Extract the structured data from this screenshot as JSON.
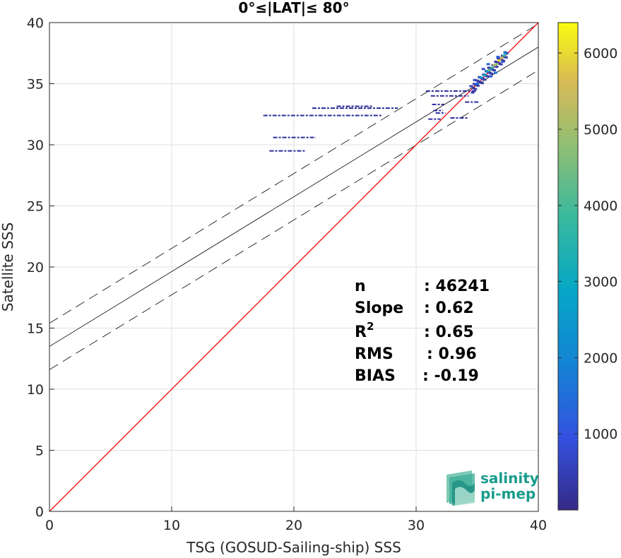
{
  "chart_data": {
    "type": "scatter",
    "title": "0°≤|LAT|≤ 80°",
    "xlabel": "TSG (GOSUD-Sailing-ship) SSS",
    "ylabel": "Satellite SSS",
    "xlim": [
      0,
      40
    ],
    "ylim": [
      0,
      40
    ],
    "xticks": [
      0,
      10,
      20,
      30,
      40
    ],
    "yticks": [
      0,
      5,
      10,
      15,
      20,
      25,
      30,
      35,
      40
    ],
    "grid": true,
    "colorbar": {
      "colormap": "parula",
      "range": [
        0,
        6400
      ],
      "ticks": [
        1000,
        2000,
        3000,
        4000,
        5000,
        6000
      ]
    },
    "lines": {
      "identity": {
        "slope": 1,
        "intercept": 0,
        "color": "#ff0000"
      },
      "fit": {
        "slope": 0.6125,
        "intercept": 13.5,
        "color": "#000000"
      },
      "upper_bound": {
        "slope": 0.6125,
        "intercept": 15.4,
        "style": "dashed"
      },
      "lower_bound": {
        "slope": 0.6125,
        "intercept": 11.6,
        "style": "dashed"
      }
    },
    "segments": [
      {
        "x0": 17.5,
        "x1": 27.2,
        "y": 32.4
      },
      {
        "x0": 21.5,
        "x1": 28.5,
        "y": 33.0
      },
      {
        "x0": 23.5,
        "x1": 26.5,
        "y": 33.15
      },
      {
        "x0": 18.3,
        "x1": 21.8,
        "y": 30.6
      },
      {
        "x0": 18.0,
        "x1": 21.0,
        "y": 29.5
      },
      {
        "x0": 30.8,
        "x1": 35.0,
        "y": 34.4
      },
      {
        "x0": 31.2,
        "x1": 34.3,
        "y": 34.0
      },
      {
        "x0": 31.0,
        "x1": 32.0,
        "y": 32.1
      },
      {
        "x0": 32.8,
        "x1": 34.2,
        "y": 32.2
      },
      {
        "x0": 31.3,
        "x1": 32.3,
        "y": 33.3
      },
      {
        "x0": 31.4,
        "x1": 32.2,
        "y": 32.8
      },
      {
        "x0": 31.6,
        "x1": 32.4,
        "y": 32.6
      },
      {
        "x0": 34.0,
        "x1": 35.2,
        "y": 33.5
      }
    ],
    "points": [
      {
        "x": 35.0,
        "y": 35.0,
        "c": 1500
      },
      {
        "x": 35.3,
        "y": 35.5,
        "c": 2200
      },
      {
        "x": 35.6,
        "y": 35.7,
        "c": 3000
      },
      {
        "x": 35.8,
        "y": 36.0,
        "c": 2500
      },
      {
        "x": 36.0,
        "y": 36.1,
        "c": 4200
      },
      {
        "x": 36.2,
        "y": 36.3,
        "c": 3500
      },
      {
        "x": 36.4,
        "y": 36.5,
        "c": 5200
      },
      {
        "x": 36.6,
        "y": 36.6,
        "c": 4800
      },
      {
        "x": 36.8,
        "y": 36.9,
        "c": 6000
      },
      {
        "x": 37.0,
        "y": 37.1,
        "c": 5500
      },
      {
        "x": 37.2,
        "y": 37.3,
        "c": 3800
      },
      {
        "x": 37.3,
        "y": 37.5,
        "c": 2000
      },
      {
        "x": 35.5,
        "y": 36.2,
        "c": 800
      },
      {
        "x": 36.1,
        "y": 35.6,
        "c": 1000
      },
      {
        "x": 36.7,
        "y": 37.2,
        "c": 1200
      },
      {
        "x": 37.1,
        "y": 36.8,
        "c": 900
      },
      {
        "x": 34.5,
        "y": 34.8,
        "c": 600
      },
      {
        "x": 35.9,
        "y": 36.6,
        "c": 1400
      },
      {
        "x": 36.5,
        "y": 35.9,
        "c": 1600
      },
      {
        "x": 34.8,
        "y": 35.3,
        "c": 700
      }
    ],
    "stats": [
      {
        "label": "n",
        "value": ": 46241"
      },
      {
        "label": "Slope",
        "value": ": 0.62"
      },
      {
        "label": "R",
        "sup": "2",
        "value": ": 0.65"
      },
      {
        "label": "RMS",
        "value": ": 0.96"
      },
      {
        "label": "BIAS",
        "value": ": -0.19"
      }
    ]
  },
  "logo": {
    "line1": "salinity",
    "line2": "pi-mep"
  }
}
